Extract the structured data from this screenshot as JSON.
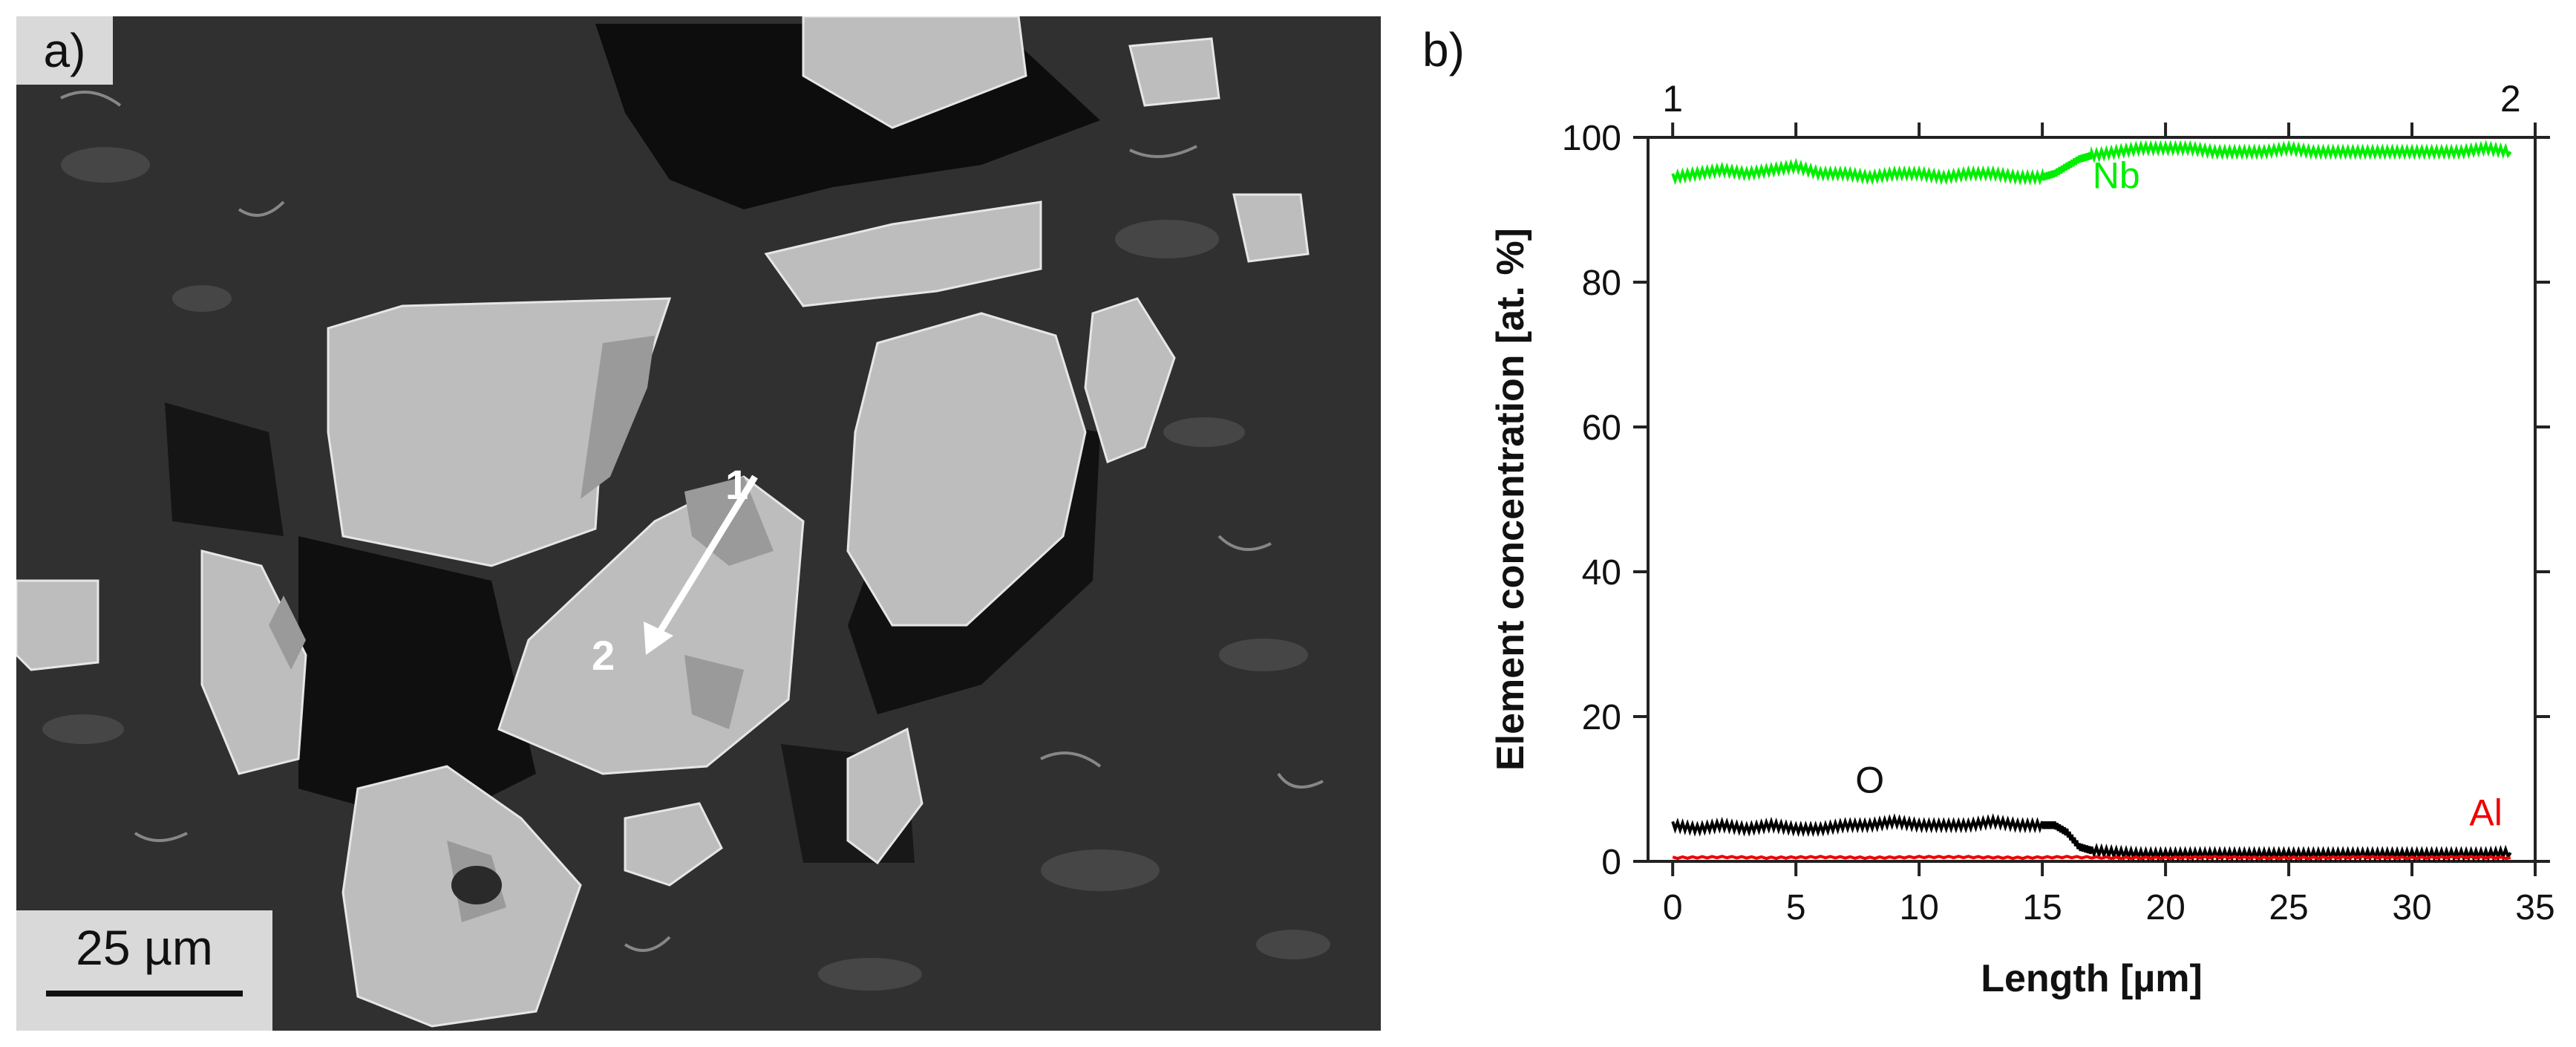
{
  "panel_a": {
    "label": "a)",
    "scale_bar": "25 µm",
    "line_start_label": "1",
    "line_end_label": "2"
  },
  "panel_b": {
    "label": "b)"
  },
  "chart_data": {
    "type": "line",
    "title": "",
    "xlabel": "Length [µm]",
    "ylabel": "Element concentration [at. %]",
    "xlim": [
      -1,
      35
    ],
    "ylim": [
      0,
      100
    ],
    "xticks": [
      0,
      5,
      10,
      15,
      20,
      25,
      30,
      35
    ],
    "yticks": [
      0,
      20,
      40,
      60,
      80,
      100
    ],
    "top_labels": [
      "1",
      "2"
    ],
    "grid": false,
    "series": [
      {
        "name": "Nb",
        "color": "#00ee00",
        "x": [
          0,
          1,
          2,
          3,
          4,
          5,
          6,
          7,
          8,
          9,
          10,
          11,
          12,
          13,
          14,
          15,
          15.5,
          16,
          16.5,
          17,
          18,
          19,
          20,
          21,
          22,
          23,
          24,
          25,
          26,
          27,
          28,
          29,
          30,
          31,
          32,
          33,
          34
        ],
        "values": [
          94.5,
          95,
          95.5,
          95,
          95.5,
          96,
          95,
          95,
          94.5,
          95,
          95,
          94.5,
          95,
          95,
          94.5,
          94.5,
          95,
          96,
          97,
          97.5,
          98,
          98.5,
          98.5,
          98.5,
          98,
          98,
          98,
          98.5,
          98,
          98,
          98,
          98,
          98,
          98,
          98,
          98.5,
          98
        ]
      },
      {
        "name": "O",
        "color": "#000000",
        "x": [
          0,
          1,
          2,
          3,
          4,
          5,
          6,
          7,
          8,
          9,
          10,
          11,
          12,
          13,
          14,
          15,
          15.5,
          16,
          16.5,
          17,
          18,
          19,
          20,
          21,
          22,
          23,
          24,
          25,
          26,
          27,
          28,
          29,
          30,
          31,
          32,
          33,
          34
        ],
        "values": [
          5,
          4.5,
          5,
          4.5,
          5,
          4.5,
          4.5,
          5,
          5,
          5.5,
          5,
          5,
          5,
          5.5,
          5,
          5,
          5,
          4,
          2,
          1.5,
          1.2,
          1,
          1,
          1,
          1,
          1,
          1,
          1,
          1,
          1,
          1,
          1,
          1,
          1,
          1,
          1,
          1.2
        ]
      },
      {
        "name": "Al",
        "color": "#ee0000",
        "x": [
          0,
          2,
          4,
          6,
          8,
          10,
          12,
          14,
          16,
          18,
          20,
          22,
          24,
          26,
          28,
          30,
          32,
          34
        ],
        "values": [
          0.5,
          0.6,
          0.5,
          0.6,
          0.5,
          0.6,
          0.6,
          0.5,
          0.6,
          0.5,
          0.5,
          0.6,
          0.5,
          0.5,
          0.6,
          0.5,
          0.6,
          0.5
        ]
      }
    ],
    "annotations": [
      {
        "text": "Nb",
        "x": 18,
        "y": 93,
        "color": "#00ee00"
      },
      {
        "text": "O",
        "x": 8,
        "y": 9.5,
        "color": "#111111"
      },
      {
        "text": "Al",
        "x": 33,
        "y": 5,
        "color": "#ee0000"
      }
    ]
  }
}
